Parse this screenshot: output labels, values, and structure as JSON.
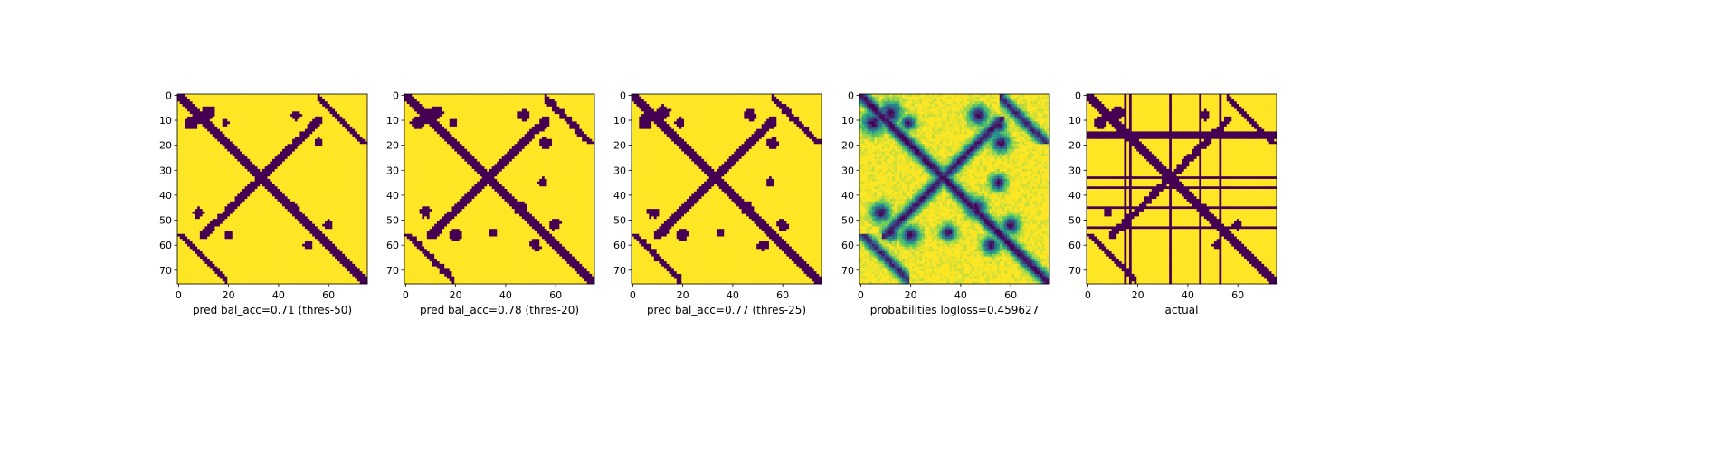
{
  "figure": {
    "background": "#ffffff",
    "colormap": "viridis",
    "colors": {
      "low": "#440154",
      "mid": "#21918c",
      "high": "#fde725"
    }
  },
  "chart_data": [
    {
      "type": "heatmap",
      "title": "",
      "xlabel": "pred bal_acc=0.71 (thres-50)",
      "ylabel": "",
      "size": 76,
      "xlim": [
        0,
        75
      ],
      "ylim": [
        75,
        0
      ],
      "xticks": [
        0,
        20,
        40,
        60
      ],
      "yticks": [
        0,
        10,
        20,
        30,
        40,
        50,
        60,
        70
      ],
      "values_kind": "binary",
      "structure": {
        "diag_width": 2.2,
        "anti_width": 2.0,
        "blobs": [
          [
            11,
            5,
            2.4
          ],
          [
            7,
            12,
            2.4
          ],
          [
            47,
            8,
            1.8
          ],
          [
            8,
            47,
            1.8
          ],
          [
            56,
            20,
            1.6
          ],
          [
            19,
            56,
            1.6
          ],
          [
            52,
            60,
            1.6
          ],
          [
            60,
            52,
            1.6
          ],
          [
            11,
            19,
            1.2
          ],
          [
            45,
            46,
            1.7
          ]
        ],
        "offdiag": [
          [
            60,
            5,
            1.5
          ],
          [
            5,
            60,
            1.5
          ]
        ],
        "threshold": 0.5
      }
    },
    {
      "type": "heatmap",
      "title": "",
      "xlabel": "pred bal_acc=0.78 (thres-20)",
      "ylabel": "",
      "size": 76,
      "xlim": [
        0,
        75
      ],
      "ylim": [
        75,
        0
      ],
      "xticks": [
        0,
        20,
        40,
        60
      ],
      "yticks": [
        0,
        10,
        20,
        30,
        40,
        50,
        60,
        70
      ],
      "values_kind": "binary",
      "structure": {
        "diag_width": 2.8,
        "anti_width": 3.0,
        "blobs": [
          [
            11,
            5,
            3.2
          ],
          [
            7,
            12,
            3.2
          ],
          [
            47,
            8,
            2.6
          ],
          [
            8,
            47,
            2.6
          ],
          [
            56,
            20,
            2.8
          ],
          [
            19,
            56,
            2.8
          ],
          [
            52,
            60,
            2.6
          ],
          [
            60,
            52,
            2.6
          ],
          [
            11,
            19,
            2.2
          ],
          [
            45,
            46,
            3.0
          ],
          [
            55,
            12,
            2.4
          ],
          [
            12,
            55,
            2.4
          ],
          [
            35,
            55,
            2.2
          ],
          [
            55,
            35,
            2.2
          ]
        ],
        "offdiag": [
          [
            60,
            5,
            2.4
          ],
          [
            5,
            60,
            2.4
          ]
        ],
        "threshold": 0.2
      }
    },
    {
      "type": "heatmap",
      "title": "",
      "xlabel": "pred bal_acc=0.77 (thres-25)",
      "ylabel": "",
      "size": 76,
      "xlim": [
        0,
        75
      ],
      "ylim": [
        75,
        0
      ],
      "xticks": [
        0,
        20,
        40,
        60
      ],
      "yticks": [
        0,
        10,
        20,
        30,
        40,
        50,
        60,
        70
      ],
      "values_kind": "binary",
      "structure": {
        "diag_width": 2.6,
        "anti_width": 2.8,
        "blobs": [
          [
            11,
            5,
            3.0
          ],
          [
            7,
            12,
            3.0
          ],
          [
            47,
            8,
            2.4
          ],
          [
            8,
            47,
            2.4
          ],
          [
            56,
            20,
            2.6
          ],
          [
            19,
            56,
            2.6
          ],
          [
            52,
            60,
            2.4
          ],
          [
            60,
            52,
            2.4
          ],
          [
            11,
            19,
            2.0
          ],
          [
            45,
            46,
            2.8
          ],
          [
            55,
            12,
            2.0
          ],
          [
            12,
            55,
            2.0
          ],
          [
            35,
            55,
            2.0
          ],
          [
            55,
            35,
            2.0
          ]
        ],
        "offdiag": [
          [
            60,
            5,
            2.2
          ],
          [
            5,
            60,
            2.2
          ]
        ],
        "threshold": 0.25
      }
    },
    {
      "type": "heatmap",
      "title": "",
      "xlabel": "probabilities logloss=0.459627",
      "ylabel": "",
      "size": 76,
      "xlim": [
        0,
        75
      ],
      "ylim": [
        75,
        0
      ],
      "xticks": [
        0,
        20,
        40,
        60
      ],
      "yticks": [
        0,
        10,
        20,
        30,
        40,
        50,
        60,
        70
      ],
      "values_kind": "continuous",
      "vmin": 0,
      "vmax": 1,
      "structure": {
        "diag_width": 2.4,
        "anti_width": 2.4,
        "blobs": [
          [
            11,
            5,
            3.0
          ],
          [
            7,
            12,
            3.0
          ],
          [
            47,
            8,
            2.6
          ],
          [
            8,
            47,
            2.6
          ],
          [
            56,
            20,
            2.6
          ],
          [
            19,
            56,
            2.6
          ],
          [
            52,
            60,
            2.4
          ],
          [
            60,
            52,
            2.4
          ],
          [
            11,
            19,
            2.0
          ],
          [
            45,
            46,
            2.8
          ],
          [
            55,
            12,
            2.2
          ],
          [
            12,
            55,
            2.2
          ],
          [
            35,
            55,
            2.2
          ],
          [
            55,
            35,
            2.2
          ]
        ],
        "offdiag": [
          [
            60,
            5,
            2.2
          ],
          [
            5,
            60,
            2.2
          ]
        ]
      }
    },
    {
      "type": "heatmap",
      "title": "",
      "xlabel": "actual",
      "ylabel": "",
      "size": 76,
      "xlim": [
        0,
        75
      ],
      "ylim": [
        75,
        0
      ],
      "xticks": [
        0,
        20,
        40,
        60
      ],
      "yticks": [
        0,
        10,
        20,
        30,
        40,
        50,
        60,
        70
      ],
      "values_kind": "binary",
      "structure": {
        "diag_width": 2.0,
        "anti_width": 1.8,
        "blobs": [
          [
            11,
            5,
            2.2
          ],
          [
            7,
            12,
            2.2
          ],
          [
            47,
            8,
            1.6
          ],
          [
            8,
            47,
            1.6
          ],
          [
            52,
            60,
            1.6
          ],
          [
            60,
            52,
            1.6
          ],
          [
            45,
            46,
            1.6
          ]
        ],
        "offdiag": [
          [
            60,
            5,
            1.4
          ],
          [
            5,
            60,
            1.4
          ]
        ],
        "masked_rows": [
          15,
          16,
          17,
          33,
          37,
          45,
          53
        ],
        "masked_cols": [
          15,
          17,
          33,
          45,
          53
        ],
        "threshold": 0.5
      }
    }
  ]
}
